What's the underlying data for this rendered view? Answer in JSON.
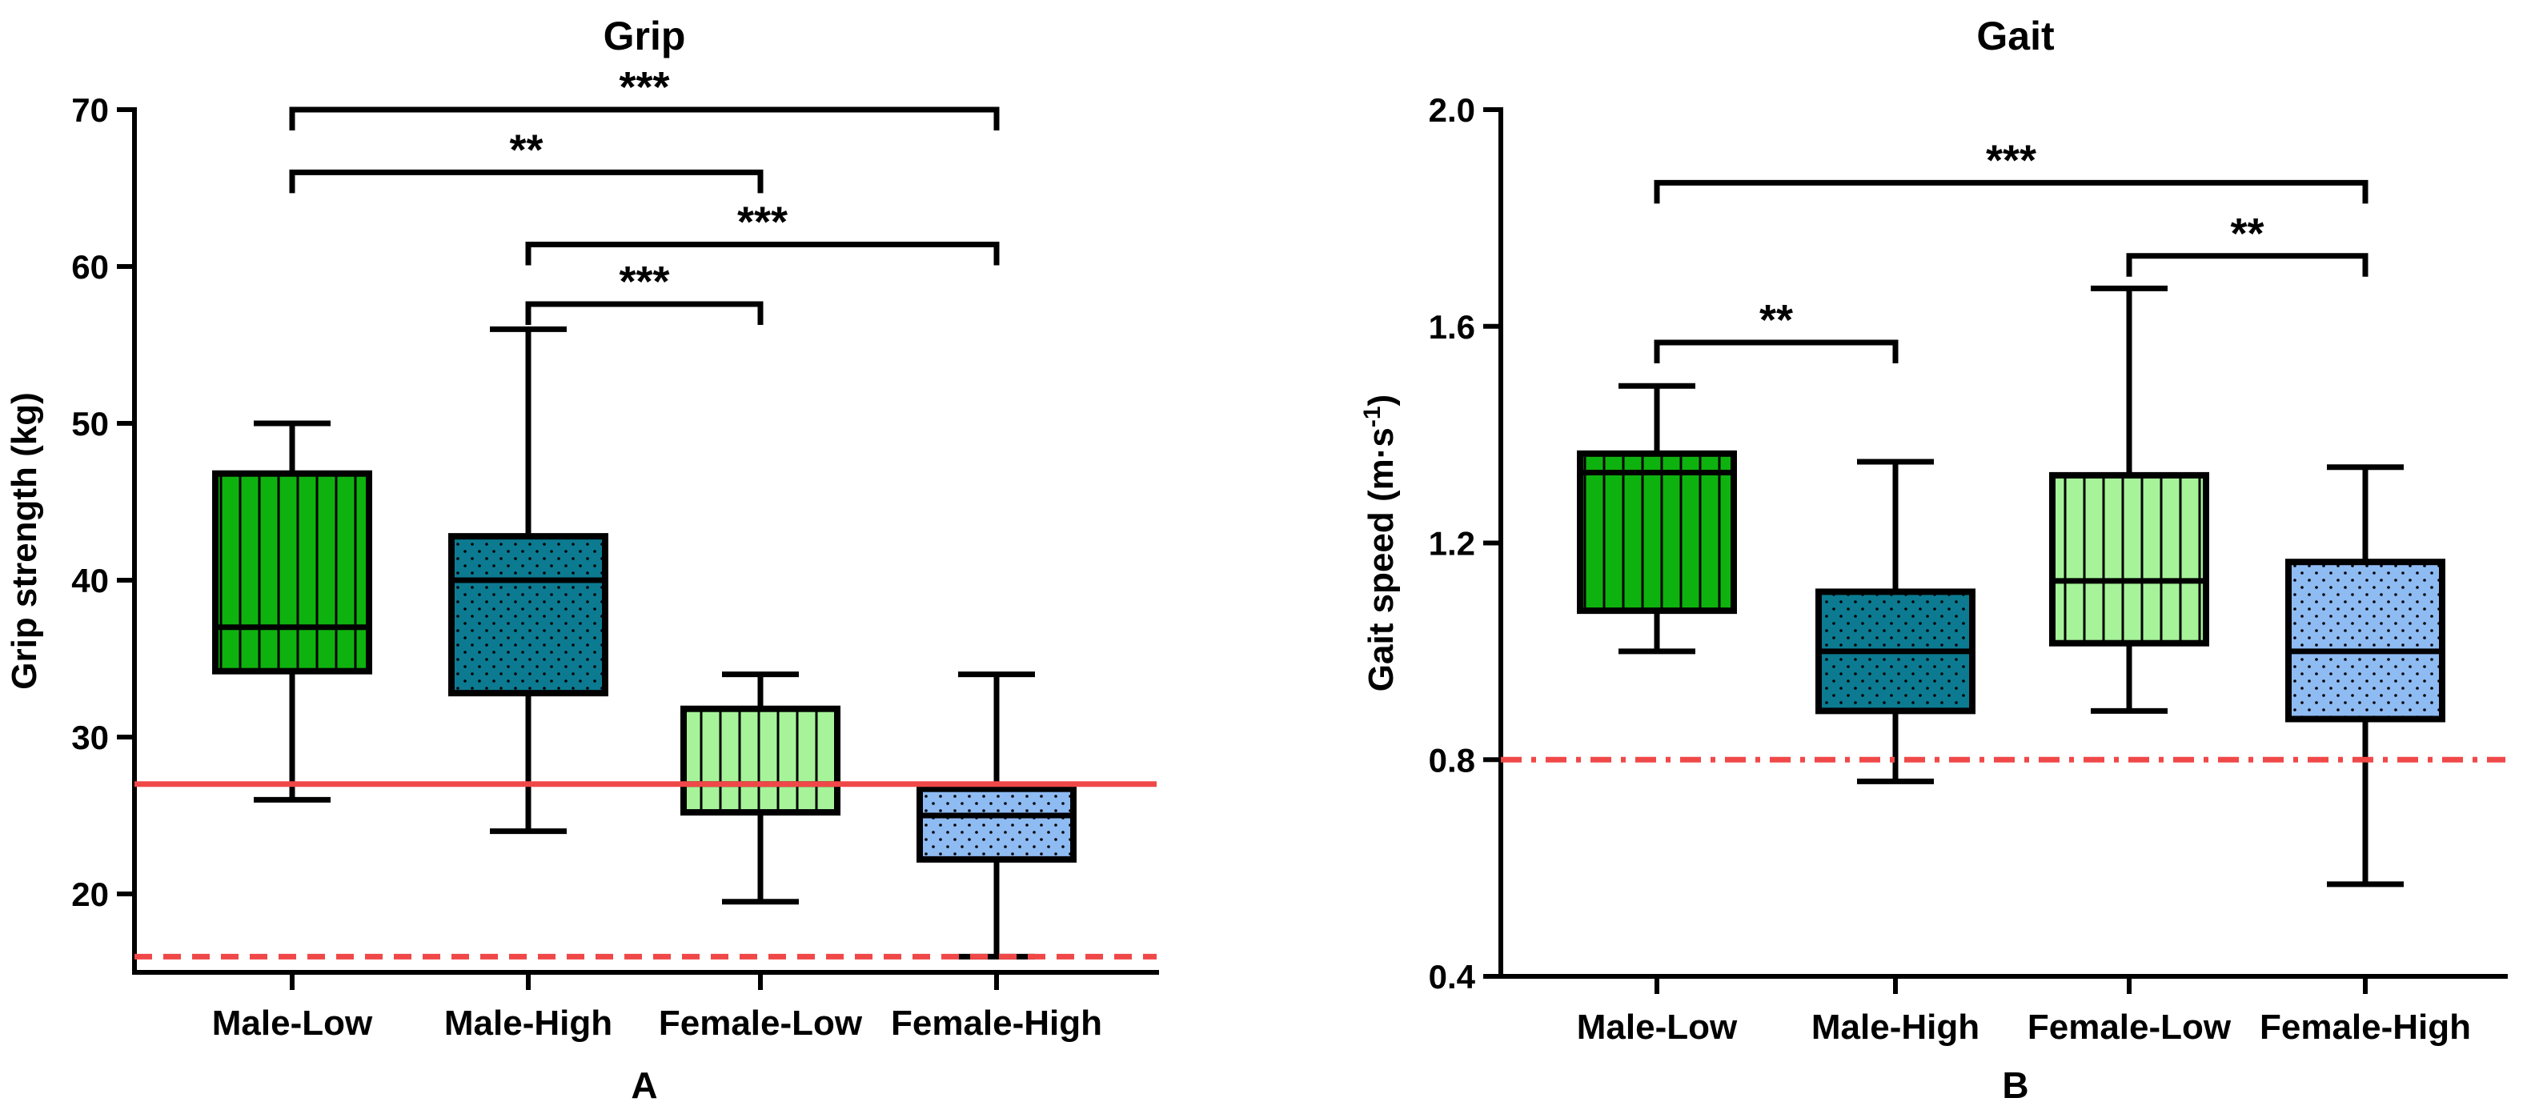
{
  "chart_data": [
    {
      "type": "boxplot",
      "panel_label": "A",
      "title": "Grip",
      "ylabel": "Grip strength (kg)",
      "ylim": [
        15,
        70
      ],
      "yticks": [
        "20",
        "30",
        "40",
        "50",
        "60",
        "70"
      ],
      "categories": [
        "Male-Low",
        "Male-High",
        "Female-Low",
        "Female-High"
      ],
      "boxes": [
        {
          "category": "Male-Low",
          "min": 26,
          "q1": 34.2,
          "median": 37,
          "q3": 46.8,
          "max": 50,
          "fill": "#0eb20e",
          "pattern": "vertical-lines"
        },
        {
          "category": "Male-High",
          "min": 24,
          "q1": 32.8,
          "median": 40,
          "q3": 42.8,
          "max": 56,
          "fill": "#0c7b91",
          "pattern": "dots"
        },
        {
          "category": "Female-Low",
          "min": 19.5,
          "q1": 25.2,
          "median": 27,
          "q3": 31.8,
          "max": 34,
          "fill": "#a6f39a",
          "pattern": "vertical-lines"
        },
        {
          "category": "Female-High",
          "min": 16,
          "q1": 22.2,
          "median": 25,
          "q3": 26.7,
          "max": 34,
          "fill": "#8fbbf3",
          "pattern": "dots"
        }
      ],
      "reference_lines": [
        {
          "value": 27,
          "style": "solid",
          "color": "#f04848"
        },
        {
          "value": 16,
          "style": "dashed",
          "color": "#f04848"
        }
      ],
      "significance": [
        {
          "from": "Male-Low",
          "to": "Female-High",
          "label": "***",
          "level": 70
        },
        {
          "from": "Male-Low",
          "to": "Female-Low",
          "label": "**",
          "level": 66
        },
        {
          "from": "Male-High",
          "to": "Female-High",
          "label": "***",
          "level": 61.4
        },
        {
          "from": "Male-High",
          "to": "Female-Low",
          "label": "***",
          "level": 57.6
        }
      ]
    },
    {
      "type": "boxplot",
      "panel_label": "B",
      "title": "Gait",
      "ylabel": "Gait speed (m·s",
      "ylabel_superscript": "-1",
      "ylabel_close": ")",
      "ylim": [
        0.4,
        2.0
      ],
      "yticks": [
        "0.4",
        "0.8",
        "1.2",
        "1.6",
        "2.0"
      ],
      "categories": [
        "Male-Low",
        "Male-High",
        "Female-Low",
        "Female-High"
      ],
      "boxes": [
        {
          "category": "Male-Low",
          "min": 1.0,
          "q1": 1.075,
          "median": 1.33,
          "q3": 1.365,
          "max": 1.49,
          "fill": "#0eb20e",
          "pattern": "vertical-lines"
        },
        {
          "category": "Male-High",
          "min": 0.76,
          "q1": 0.89,
          "median": 1.0,
          "q3": 1.11,
          "max": 1.35,
          "fill": "#0c7b91",
          "pattern": "dots"
        },
        {
          "category": "Female-Low",
          "min": 0.89,
          "q1": 1.015,
          "median": 1.13,
          "q3": 1.325,
          "max": 1.67,
          "fill": "#a6f39a",
          "pattern": "vertical-lines"
        },
        {
          "category": "Female-High",
          "min": 0.57,
          "q1": 0.875,
          "median": 1.0,
          "q3": 1.165,
          "max": 1.34,
          "fill": "#8fbbf3",
          "pattern": "dots"
        }
      ],
      "reference_lines": [
        {
          "value": 0.8,
          "style": "dash-dot",
          "color": "#f04848"
        }
      ],
      "significance": [
        {
          "from": "Male-Low",
          "to": "Female-High",
          "label": "***",
          "level": 1.865
        },
        {
          "from": "Female-Low",
          "to": "Female-High",
          "label": "**",
          "level": 1.73
        },
        {
          "from": "Male-Low",
          "to": "Male-High",
          "label": "**",
          "level": 1.57
        }
      ]
    }
  ]
}
